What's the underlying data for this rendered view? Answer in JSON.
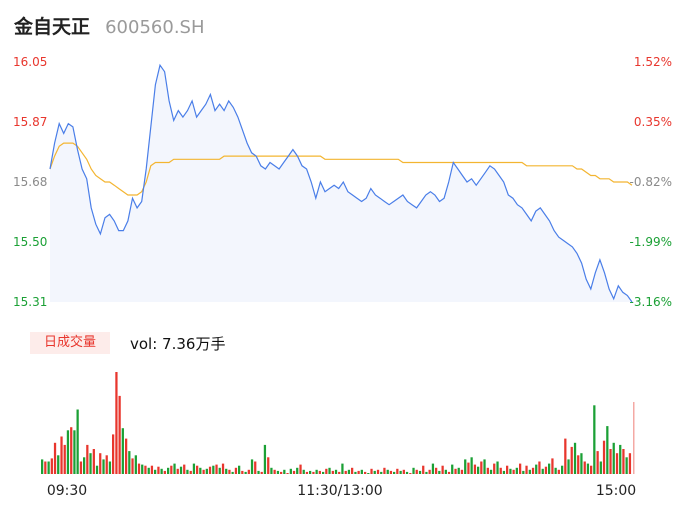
{
  "header": {
    "name": "金自天正",
    "code": "600560.SH"
  },
  "colors": {
    "up": "#e8362d",
    "down": "#1ba035",
    "neutral": "#8a8a8a",
    "price_line": "#4a7ee8",
    "avg_line": "#f3b531"
  },
  "chart_data": [
    {
      "type": "line",
      "title": "",
      "xlabel": "",
      "ylabel": "",
      "ylim": [
        15.31,
        16.05
      ],
      "price_ticks": [
        "16.05",
        "15.87",
        "15.68",
        "15.50",
        "15.31"
      ],
      "pct_ticks": [
        "1.52%",
        "0.35%",
        "-0.82%",
        "-1.99%",
        "-3.16%"
      ],
      "series": [
        {
          "values": [
            15.72,
            15.8,
            15.86,
            15.83,
            15.86,
            15.85,
            15.78,
            15.72,
            15.69,
            15.6,
            15.55,
            15.52,
            15.57,
            15.58,
            15.56,
            15.53,
            15.53,
            15.56,
            15.63,
            15.6,
            15.62,
            15.72,
            15.85,
            15.98,
            16.04,
            16.02,
            15.93,
            15.87,
            15.9,
            15.88,
            15.9,
            15.93,
            15.88,
            15.9,
            15.92,
            15.95,
            15.9,
            15.92,
            15.9,
            15.93,
            15.91,
            15.88,
            15.84,
            15.8,
            15.77,
            15.76,
            15.73,
            15.72,
            15.74,
            15.73,
            15.72,
            15.74,
            15.76,
            15.78,
            15.76,
            15.73,
            15.72,
            15.68,
            15.63,
            15.68,
            15.65,
            15.66,
            15.67,
            15.66,
            15.68,
            15.65,
            15.64,
            15.63,
            15.62,
            15.63,
            15.66,
            15.64,
            15.63,
            15.62,
            15.61,
            15.62,
            15.63,
            15.64,
            15.62,
            15.61,
            15.6,
            15.62,
            15.64,
            15.65,
            15.64,
            15.62,
            15.63,
            15.68,
            15.74,
            15.72,
            15.7,
            15.68,
            15.69,
            15.67,
            15.69,
            15.71,
            15.73,
            15.72,
            15.7,
            15.68,
            15.64,
            15.63,
            15.61,
            15.6,
            15.58,
            15.56,
            15.59,
            15.6,
            15.58,
            15.56,
            15.53,
            15.51,
            15.5,
            15.49,
            15.48,
            15.46,
            15.43,
            15.38,
            15.35,
            15.4,
            15.44,
            15.4,
            15.35,
            15.32,
            15.36,
            15.34,
            15.33,
            15.31
          ]
        },
        {
          "values": [
            15.72,
            15.76,
            15.79,
            15.8,
            15.8,
            15.8,
            15.79,
            15.77,
            15.75,
            15.72,
            15.7,
            15.69,
            15.68,
            15.68,
            15.67,
            15.66,
            15.65,
            15.64,
            15.64,
            15.64,
            15.65,
            15.68,
            15.73,
            15.74,
            15.74,
            15.74,
            15.74,
            15.75,
            15.75,
            15.75,
            15.75,
            15.75,
            15.75,
            15.75,
            15.75,
            15.75,
            15.75,
            15.75,
            15.76,
            15.76,
            15.76,
            15.76,
            15.76,
            15.76,
            15.76,
            15.76,
            15.76,
            15.76,
            15.76,
            15.76,
            15.76,
            15.76,
            15.76,
            15.76,
            15.76,
            15.76,
            15.76,
            15.76,
            15.76,
            15.76,
            15.75,
            15.75,
            15.75,
            15.75,
            15.75,
            15.75,
            15.75,
            15.75,
            15.75,
            15.75,
            15.75,
            15.75,
            15.75,
            15.75,
            15.75,
            15.75,
            15.75,
            15.74,
            15.74,
            15.74,
            15.74,
            15.74,
            15.74,
            15.74,
            15.74,
            15.74,
            15.74,
            15.74,
            15.74,
            15.74,
            15.74,
            15.74,
            15.74,
            15.74,
            15.74,
            15.74,
            15.74,
            15.74,
            15.74,
            15.74,
            15.74,
            15.74,
            15.74,
            15.74,
            15.73,
            15.73,
            15.73,
            15.73,
            15.73,
            15.73,
            15.73,
            15.73,
            15.73,
            15.73,
            15.73,
            15.72,
            15.72,
            15.71,
            15.7,
            15.7,
            15.69,
            15.69,
            15.69,
            15.68,
            15.68,
            15.68,
            15.68,
            15.67
          ]
        }
      ]
    },
    {
      "type": "bar",
      "title": "",
      "indicator_label": "日成交量",
      "volume_text": "vol: 7.36万手",
      "x_ticks": [
        "09:30",
        "11:30/13:00",
        "15:00"
      ],
      "values": [
        14,
        12,
        12,
        15,
        30,
        18,
        36,
        28,
        42,
        45,
        42,
        62,
        12,
        16,
        28,
        20,
        24,
        8,
        20,
        14,
        18,
        12,
        38,
        98,
        75,
        44,
        34,
        22,
        15,
        18,
        10,
        9,
        8,
        6,
        8,
        4,
        7,
        5,
        3,
        6,
        8,
        10,
        5,
        7,
        9,
        4,
        3,
        10,
        8,
        6,
        4,
        5,
        7,
        8,
        9,
        6,
        10,
        5,
        4,
        2,
        6,
        8,
        3,
        2,
        4,
        14,
        12,
        3,
        2,
        28,
        16,
        6,
        4,
        3,
        2,
        4,
        1,
        5,
        3,
        6,
        9,
        4,
        2,
        3,
        2,
        4,
        3,
        2,
        5,
        6,
        3,
        4,
        2,
        10,
        3,
        4,
        6,
        2,
        3,
        4,
        2,
        1,
        5,
        3,
        4,
        2,
        6,
        4,
        3,
        2,
        5,
        3,
        4,
        2,
        1,
        6,
        4,
        3,
        8,
        2,
        4,
        10,
        6,
        3,
        8,
        4,
        2,
        9,
        5,
        6,
        4,
        14,
        11,
        16,
        9,
        7,
        12,
        14,
        6,
        4,
        10,
        12,
        6,
        3,
        8,
        5,
        4,
        6,
        10,
        3,
        8,
        4,
        6,
        9,
        12,
        5,
        7,
        10,
        15,
        6,
        4,
        8,
        34,
        14,
        26,
        30,
        18,
        20,
        12,
        10,
        8,
        66,
        22,
        12,
        32,
        46,
        24,
        30,
        20,
        28,
        24,
        16,
        20
      ],
      "down_flags": [
        1,
        0,
        1,
        0,
        0,
        1,
        0,
        0,
        1,
        0,
        1,
        1,
        0,
        1,
        0,
        1,
        0,
        1,
        0,
        1,
        0,
        1,
        0,
        0,
        0,
        1,
        0,
        1,
        0,
        1,
        0,
        1,
        0,
        1,
        0,
        1,
        0,
        1,
        0,
        1,
        0,
        1,
        0,
        1,
        0,
        1,
        0,
        1,
        0,
        1,
        0,
        1,
        0,
        1,
        0,
        1,
        0,
        1,
        0,
        1,
        0,
        1,
        0,
        1,
        0,
        1,
        0,
        1,
        0,
        1,
        0,
        1,
        0,
        1,
        0,
        1,
        0,
        1,
        0,
        1,
        0,
        1,
        0,
        1,
        0,
        1,
        0,
        1,
        0,
        1,
        0,
        1,
        0,
        1,
        0,
        1,
        0,
        1,
        0,
        1,
        0,
        1,
        0,
        1,
        0,
        1,
        0,
        1,
        0,
        1,
        0,
        1,
        0,
        1,
        0,
        1,
        0,
        1,
        0,
        1,
        0,
        1,
        0,
        1,
        0,
        1,
        0,
        1,
        0,
        1,
        0,
        1,
        0,
        1,
        0,
        1,
        0,
        1,
        0,
        1,
        0,
        1,
        0,
        1,
        0,
        1,
        0,
        1,
        0,
        1,
        0,
        1,
        0,
        1,
        0,
        1,
        0,
        1,
        0,
        1,
        0,
        1,
        0,
        1,
        0,
        1,
        0,
        1,
        0,
        1,
        0,
        1,
        0,
        1,
        0,
        1,
        0,
        1,
        0,
        1,
        0,
        1,
        0,
        1,
        0,
        1,
        0,
        1,
        0,
        1,
        0,
        1,
        0,
        1,
        0,
        1,
        0,
        1,
        0,
        1
      ]
    }
  ]
}
